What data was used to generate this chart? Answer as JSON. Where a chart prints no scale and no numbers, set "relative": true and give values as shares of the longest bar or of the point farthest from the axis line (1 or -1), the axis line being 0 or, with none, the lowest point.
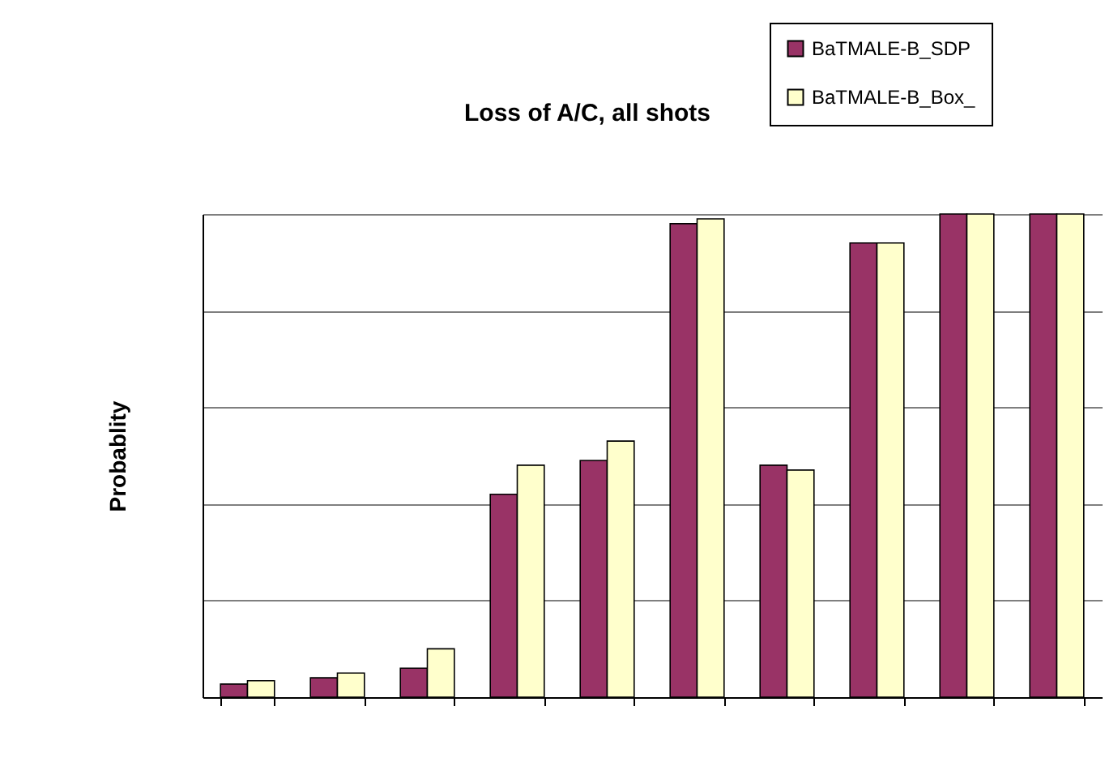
{
  "chart_data": {
    "type": "bar",
    "title": "Loss of A/C, all shots",
    "ylabel": "Probablity",
    "relative": true,
    "categories": [
      null,
      null,
      null,
      null,
      null,
      null,
      null,
      null,
      null,
      null
    ],
    "series": [
      {
        "name": "BaTMALE-B_SDP",
        "color": "#993366",
        "values": [
          0.027,
          0.04,
          0.06,
          0.42,
          0.49,
          0.98,
          0.48,
          0.94,
          1,
          1
        ]
      },
      {
        "name": "BaTMALE-B_Box_",
        "color": "#ffffcc",
        "values": [
          0.034,
          0.05,
          0.1,
          0.48,
          0.53,
          0.99,
          0.47,
          0.94,
          1,
          1
        ]
      }
    ],
    "grid": "y",
    "legend": "top right"
  }
}
